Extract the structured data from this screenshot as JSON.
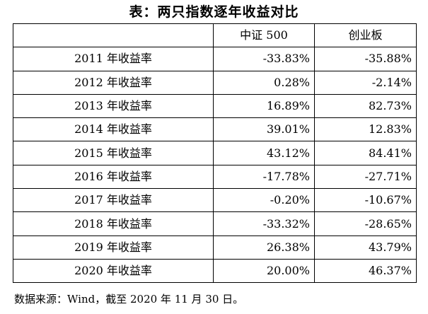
{
  "title": "表：两只指数逐年收益对比",
  "table": {
    "headers": [
      "",
      "中证 500",
      "创业板"
    ],
    "rows": [
      {
        "label": "2011 年收益率",
        "csi500": "-33.83%",
        "chinext": "-35.88%"
      },
      {
        "label": "2012 年收益率",
        "csi500": "0.28%",
        "chinext": "-2.14%"
      },
      {
        "label": "2013 年收益率",
        "csi500": "16.89%",
        "chinext": "82.73%"
      },
      {
        "label": "2014 年收益率",
        "csi500": "39.01%",
        "chinext": "12.83%"
      },
      {
        "label": "2015 年收益率",
        "csi500": "43.12%",
        "chinext": "84.41%"
      },
      {
        "label": "2016 年收益率",
        "csi500": "-17.78%",
        "chinext": "-27.71%"
      },
      {
        "label": "2017 年收益率",
        "csi500": "-0.20%",
        "chinext": "-10.67%"
      },
      {
        "label": "2018 年收益率",
        "csi500": "-33.32%",
        "chinext": "-28.65%"
      },
      {
        "label": "2019 年收益率",
        "csi500": "26.38%",
        "chinext": "43.79%"
      },
      {
        "label": "2020 年收益率",
        "csi500": "20.00%",
        "chinext": "46.37%"
      }
    ]
  },
  "source": "数据来源：Wind，截至 2020 年 11 月 30 日。"
}
